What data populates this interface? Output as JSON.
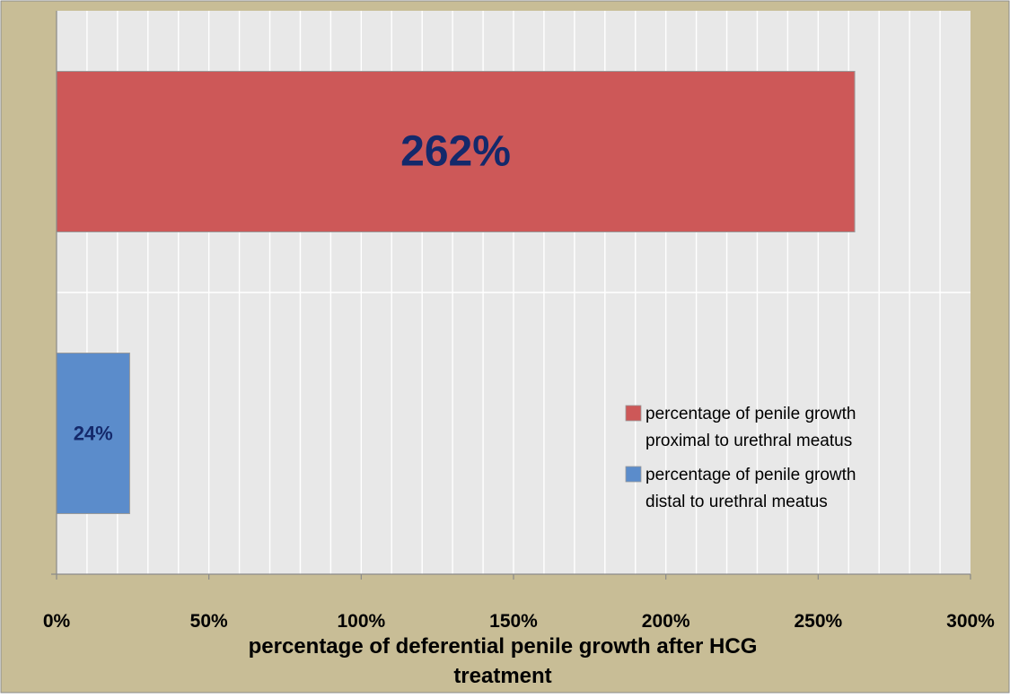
{
  "chart_data": {
    "type": "bar",
    "orientation": "horizontal",
    "xlabel": "percentage of deferential  penile growth after HCG treatment",
    "xlabel_lines": [
      "percentage of deferential  penile growth after HCG",
      "treatment"
    ],
    "ylabel": "",
    "title": "",
    "xlim": [
      0,
      300
    ],
    "x_ticks": [
      "0%",
      "50%",
      "100%",
      "150%",
      "200%",
      "250%",
      "300%"
    ],
    "x_tick_values": [
      0,
      50,
      100,
      150,
      200,
      250,
      300
    ],
    "minor_gridline_step": 10,
    "grid": true,
    "legend_position": "right",
    "series": [
      {
        "name": "percentage of penile growth proximal to urethral meatus",
        "legend_lines": [
          "percentage of penile growth",
          "proximal to urethral meatus"
        ],
        "value": 262,
        "data_label": "262%",
        "color": "#cd5858"
      },
      {
        "name": "percentage of penile growth distal to urethral meatus",
        "legend_lines": [
          "percentage of penile growth",
          "distal to urethral meatus"
        ],
        "value": 24,
        "data_label": "24%",
        "color": "#5b8ccb"
      }
    ],
    "colors": {
      "frame_background": "#c8bd96",
      "plot_background": "#e8e8e8",
      "gridline": "#ffffff",
      "data_label_text": "#14296b",
      "legend_border": "#e8e8e8"
    }
  }
}
